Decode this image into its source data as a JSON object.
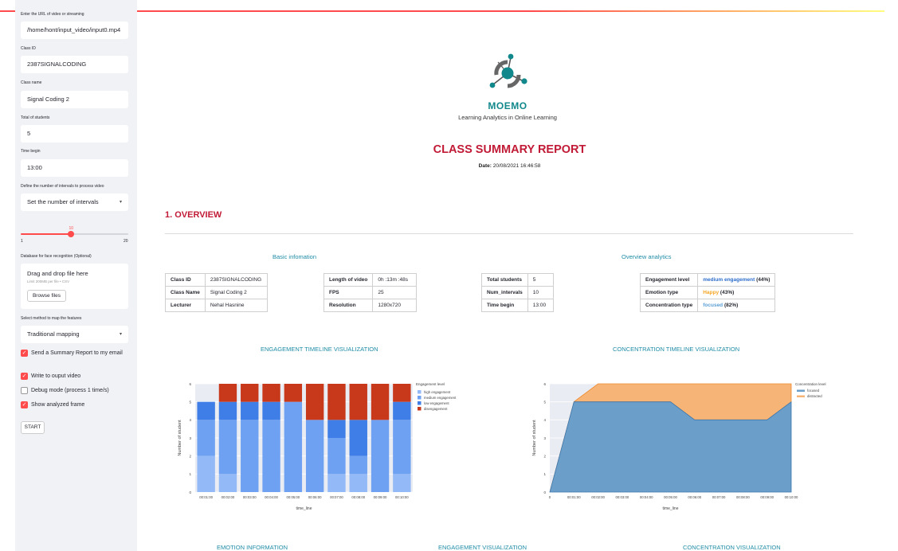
{
  "sidebar": {
    "url_label": "Enter the URL of video or streaming",
    "url_value": "/home/hont/input_video/input0.mp4",
    "class_id_label": "Class ID",
    "class_id_value": "2387SIGNALCODING",
    "class_name_label": "Class name",
    "class_name_value": "Signal Coding 2",
    "total_students_label": "Total of students",
    "total_students_value": "5",
    "time_begin_label": "Time begin",
    "time_begin_value": "13:00",
    "intervals_label": "Define the number of intervals to process video",
    "intervals_select": "Set the number of intervals",
    "slider": {
      "value": "10",
      "min": "1",
      "max": "20",
      "fraction": 0.47
    },
    "face_db_label": "Database for face recognition (Optional)",
    "uploader_title": "Drag and drop file here",
    "uploader_limit": "Limit 200MB per file • CSV",
    "browse_label": "Browse files",
    "map_method_label": "Select method to map the features",
    "map_method_value": "Traditional mapping",
    "checkboxes": [
      {
        "label": "Send a Summary Report to my email",
        "checked": true
      },
      {
        "label": "Write to ouput video",
        "checked": true
      },
      {
        "label": "Debug mode (process 1 time/s)",
        "checked": false
      },
      {
        "label": "Show analyzed frame",
        "checked": true
      }
    ],
    "start_label": "START"
  },
  "header": {
    "brand": "MOEMO",
    "tagline": "Learning Analytics in Online Learning",
    "report_title": "CLASS SUMMARY REPORT",
    "date_label": "Date:",
    "date_value": "20/08/2021 16:46:58"
  },
  "overview": {
    "title": "1. OVERVIEW",
    "basic_heading": "Basic infomation",
    "analytics_heading": "Overview analytics",
    "table1": [
      [
        "Class ID",
        "2387SIGNALCODING"
      ],
      [
        "Class Name",
        "Signal Coding 2"
      ],
      [
        "Lecturer",
        "Nehal Hasnine"
      ]
    ],
    "table2": [
      [
        "Length of video",
        "0h :13m :48s"
      ],
      [
        "FPS",
        "25"
      ],
      [
        "Resolution",
        "1280x720"
      ]
    ],
    "table3": [
      [
        "Total students",
        "5"
      ],
      [
        "Num_intervals",
        "10"
      ],
      [
        "Time begin",
        "13:00"
      ]
    ],
    "table4": {
      "engagement_key": "Engagement level",
      "engagement_val": "medium engagement",
      "engagement_pct": "(44%)",
      "emotion_key": "Emotion type",
      "emotion_val": "Happy",
      "emotion_pct": "(43%)",
      "concentration_key": "Concentration type",
      "concentration_val": "focused",
      "concentration_pct": "(82%)"
    }
  },
  "headings": {
    "engagement_timeline": "ENGAGEMENT TIMELINE VISUALIZATION",
    "concentration_timeline": "CONCENTRATION TIMELINE VISUALIZATION",
    "emotion_info": "EMOTION INFORMATION",
    "engagement_vis": "ENGAGEMENT VISUALIZATION",
    "concentration_vis": "CONCENTRATION VISUALIZATION"
  },
  "colors": {
    "high": "#93b9f7",
    "medium": "#6ea1f1",
    "low": "#3f7ee6",
    "disengagement": "#c8391b",
    "focused": "#6b9ec8",
    "distracted": "#f6b577"
  },
  "chart_data": [
    {
      "type": "bar",
      "stacked": true,
      "title": "",
      "xlabel": "time_line",
      "ylabel": "Number of student",
      "ylim": [
        0,
        6
      ],
      "yticks": [
        "0",
        "1",
        "2",
        "3",
        "4",
        "5",
        "6"
      ],
      "categories": [
        "00:01:00",
        "00:02:00",
        "00:03:00",
        "00:04:00",
        "00:05:00",
        "00:06:00",
        "00:07:00",
        "00:08:00",
        "00:09:00",
        "00:10:00"
      ],
      "legend_title": "Engagement level",
      "series": [
        {
          "name": "high engagement",
          "values": [
            2,
            1,
            0,
            0,
            0,
            0,
            1,
            1,
            0,
            1
          ]
        },
        {
          "name": "medium engagement",
          "values": [
            2,
            3,
            4,
            4,
            5,
            4,
            2,
            1,
            4,
            3
          ]
        },
        {
          "name": "low engagement",
          "values": [
            1,
            1,
            1,
            1,
            0,
            0,
            1,
            2,
            0,
            1
          ]
        },
        {
          "name": "disengagement",
          "values": [
            0,
            1,
            1,
            1,
            1,
            2,
            2,
            2,
            2,
            1
          ]
        }
      ]
    },
    {
      "type": "area",
      "stacked": true,
      "title": "",
      "xlabel": "time_line",
      "ylabel": "Number of student",
      "ylim": [
        0,
        6
      ],
      "yticks": [
        "0",
        "1",
        "2",
        "3",
        "4",
        "5",
        "6"
      ],
      "categories": [
        "0",
        "00:01:00",
        "00:02:00",
        "00:03:00",
        "00:04:00",
        "00:05:00",
        "00:06:00",
        "00:07:00",
        "00:08:00",
        "00:09:00",
        "00:10:00"
      ],
      "legend_title": "Concentration level",
      "series": [
        {
          "name": "focused",
          "values": [
            0,
            5,
            5,
            5,
            5,
            5,
            4,
            4,
            4,
            4,
            5
          ]
        },
        {
          "name": "distracted",
          "values": [
            0,
            0,
            1,
            1,
            1,
            1,
            2,
            2,
            2,
            2,
            1
          ]
        }
      ]
    }
  ]
}
